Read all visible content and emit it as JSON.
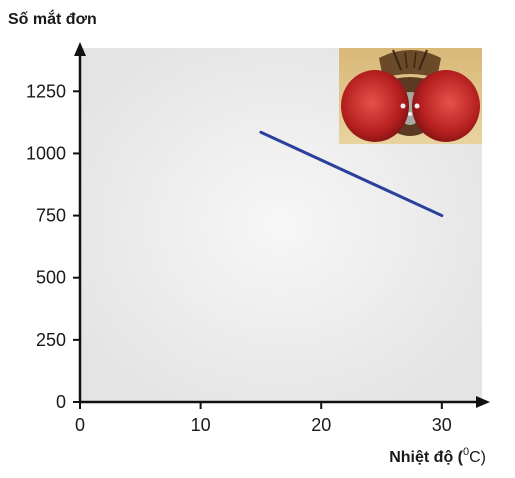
{
  "chart_data": {
    "type": "line",
    "ylabel": "Số mắt đơn",
    "xlabel_main": "Nhiệt độ (",
    "xlabel_unit_sup": "0",
    "xlabel_unit_tail": "C)",
    "xlim": [
      0,
      33
    ],
    "ylim": [
      0,
      1400
    ],
    "x_ticks": [
      0,
      10,
      20,
      30
    ],
    "y_ticks": [
      0,
      250,
      500,
      750,
      1000,
      1250
    ],
    "grid": false,
    "series": [
      {
        "color": "#2b3f9c",
        "x": [
          15,
          30
        ],
        "y": [
          1085,
          750
        ]
      }
    ]
  },
  "colors": {
    "axis": "#111111",
    "plot_background": "#eeeeee",
    "line": "#2b3f9c"
  },
  "illustration": {
    "icon": "fly-head-photo"
  }
}
